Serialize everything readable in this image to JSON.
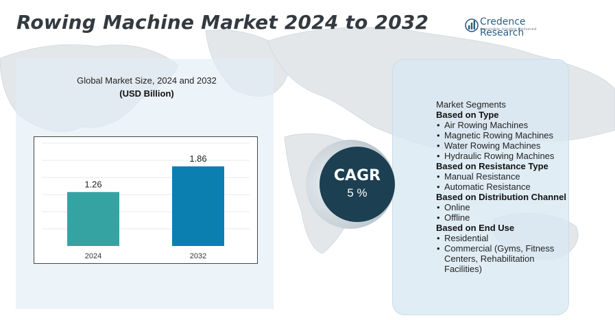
{
  "title": "Rowing Machine Market 2024 to 2032",
  "logo": {
    "name": "Credence Research",
    "tagline": "Actionable Insights Delivered"
  },
  "chart_data": {
    "type": "bar",
    "title": "Global Market Size,  2024 and 2032",
    "unit": "(USD Billion)",
    "categories": [
      "2024",
      "2032"
    ],
    "values": [
      1.26,
      1.86
    ],
    "value_labels": [
      "1.26",
      "1.86"
    ],
    "colors": [
      "#36a3a3",
      "#0b7fb0"
    ],
    "ylim": [
      0,
      2.4
    ],
    "grid": true,
    "xlabel": "",
    "ylabel": ""
  },
  "cagr": {
    "label": "CAGR",
    "value": "5 %"
  },
  "segments": {
    "heading": "Market Segments",
    "groups": [
      {
        "title": "Based on Type",
        "items": [
          "Air Rowing Machines",
          "Magnetic Rowing Machines",
          "Water Rowing Machines",
          "Hydraulic Rowing Machines"
        ]
      },
      {
        "title": "Based on Resistance Type",
        "items": [
          "Manual Resistance",
          "Automatic Resistance"
        ]
      },
      {
        "title": "Based on Distribution Channel",
        "items": [
          "Online",
          "Offline"
        ]
      },
      {
        "title": "Based on End Use",
        "items": [
          "Residential",
          "Commercial (Gyms, Fitness Centers, Rehabilitation Facilities)"
        ]
      }
    ]
  }
}
